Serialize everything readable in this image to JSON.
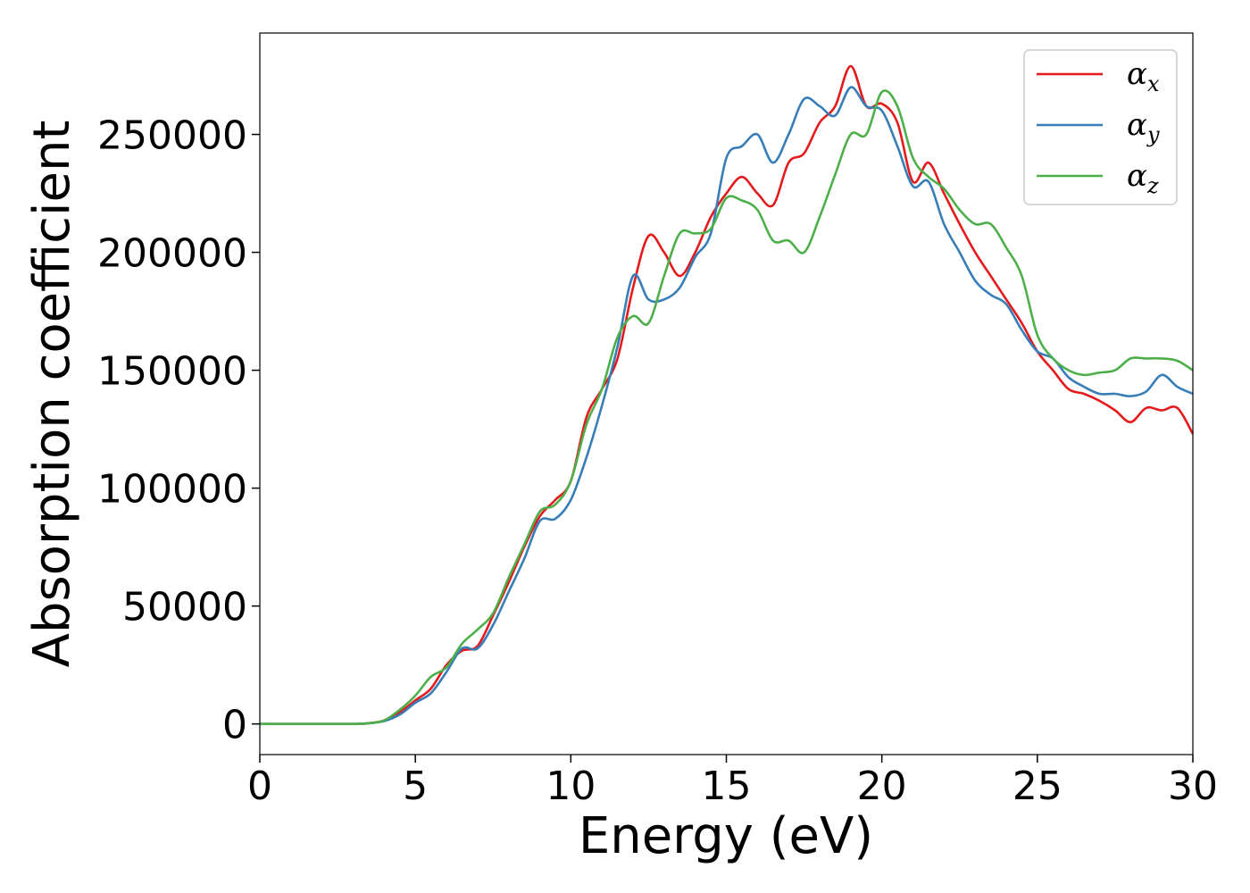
{
  "chart_data": {
    "type": "line",
    "xlabel": "Energy (eV)",
    "ylabel": "Absorption coefficient",
    "xlim": [
      0,
      30
    ],
    "ylim": [
      -13000,
      293000
    ],
    "xticks": [
      0,
      5,
      10,
      15,
      20,
      25,
      30
    ],
    "xtick_labels": [
      "0",
      "5",
      "10",
      "15",
      "20",
      "25",
      "30"
    ],
    "yticks": [
      0,
      50000,
      100000,
      150000,
      200000,
      250000
    ],
    "ytick_labels": [
      "0",
      "50000",
      "100000",
      "150000",
      "200000",
      "250000"
    ],
    "grid": false,
    "legend_position": "top-right",
    "series": [
      {
        "name": "α",
        "subscript": "x",
        "color": "#e41a1c",
        "x": [
          0,
          1,
          2,
          3,
          3.5,
          4,
          4.5,
          5,
          5.5,
          6,
          6.5,
          7,
          7.5,
          8,
          8.5,
          9,
          9.5,
          10,
          10.5,
          11,
          11.5,
          12,
          12.5,
          13,
          13.5,
          14,
          14.5,
          15,
          15.5,
          16,
          16.5,
          17,
          17.5,
          18,
          18.5,
          19,
          19.5,
          20,
          20.5,
          21,
          21.5,
          22,
          22.5,
          23,
          23.5,
          24,
          24.5,
          25,
          25.5,
          26,
          26.5,
          27,
          27.5,
          28,
          28.5,
          29,
          29.5,
          30
        ],
        "values": [
          0,
          0,
          0,
          0,
          300,
          1500,
          5000,
          10000,
          15000,
          25000,
          31000,
          33000,
          46000,
          60000,
          75000,
          88000,
          95000,
          103000,
          130000,
          142000,
          155000,
          185000,
          207000,
          200000,
          190000,
          200000,
          215000,
          225000,
          232000,
          225000,
          220000,
          238000,
          242000,
          255000,
          262000,
          279000,
          262000,
          263000,
          255000,
          230000,
          238000,
          225000,
          212000,
          200000,
          190000,
          180000,
          170000,
          158000,
          150000,
          142000,
          140000,
          137000,
          133000,
          128000,
          134000,
          133000,
          134000,
          123000
        ]
      },
      {
        "name": "α",
        "subscript": "y",
        "color": "#377eb8",
        "x": [
          0,
          1,
          2,
          3,
          3.5,
          4,
          4.5,
          5,
          5.5,
          6,
          6.5,
          7,
          7.5,
          8,
          8.5,
          9,
          9.5,
          10,
          10.5,
          11,
          11.5,
          12,
          12.5,
          13,
          13.5,
          14,
          14.5,
          15,
          15.5,
          16,
          16.5,
          17,
          17.5,
          18,
          18.5,
          19,
          19.5,
          20,
          20.5,
          21,
          21.5,
          22,
          22.5,
          23,
          23.5,
          24,
          24.5,
          25,
          25.5,
          26,
          26.5,
          27,
          27.5,
          28,
          28.5,
          29,
          29.5,
          30
        ],
        "values": [
          0,
          0,
          0,
          0,
          300,
          1200,
          4000,
          9000,
          13000,
          22000,
          32000,
          32000,
          42000,
          56000,
          70000,
          86000,
          87000,
          95000,
          113000,
          135000,
          160000,
          190000,
          180000,
          180000,
          185000,
          198000,
          208000,
          240000,
          245000,
          250000,
          238000,
          250000,
          265000,
          262000,
          258000,
          270000,
          262000,
          260000,
          245000,
          228000,
          230000,
          212000,
          200000,
          188000,
          182000,
          178000,
          167000,
          158000,
          155000,
          147000,
          143000,
          140000,
          140000,
          139000,
          141000,
          148000,
          143000,
          140000
        ]
      },
      {
        "name": "α",
        "subscript": "z",
        "color": "#4daf4a",
        "x": [
          0,
          1,
          2,
          3,
          3.5,
          4,
          4.5,
          5,
          5.5,
          6,
          6.5,
          7,
          7.5,
          8,
          8.5,
          9,
          9.5,
          10,
          10.5,
          11,
          11.5,
          12,
          12.5,
          13,
          13.5,
          14,
          14.5,
          15,
          15.5,
          16,
          16.5,
          17,
          17.5,
          18,
          18.5,
          19,
          19.5,
          20,
          20.5,
          21,
          21.5,
          22,
          22.5,
          23,
          23.5,
          24,
          24.5,
          25,
          25.5,
          26,
          26.5,
          27,
          27.5,
          28,
          28.5,
          29,
          29.5,
          30
        ],
        "values": [
          0,
          0,
          0,
          0,
          300,
          1500,
          6000,
          12000,
          20000,
          24000,
          34000,
          40000,
          47000,
          62000,
          76000,
          90000,
          93000,
          103000,
          127000,
          142000,
          164000,
          173000,
          170000,
          190000,
          208000,
          208000,
          210000,
          223000,
          222000,
          218000,
          205000,
          205000,
          200000,
          215000,
          233000,
          250000,
          250000,
          268000,
          262000,
          240000,
          232000,
          227000,
          218000,
          212000,
          212000,
          202000,
          190000,
          165000,
          155000,
          150000,
          148000,
          149000,
          150000,
          155000,
          155000,
          155000,
          154000,
          150000
        ]
      }
    ]
  }
}
